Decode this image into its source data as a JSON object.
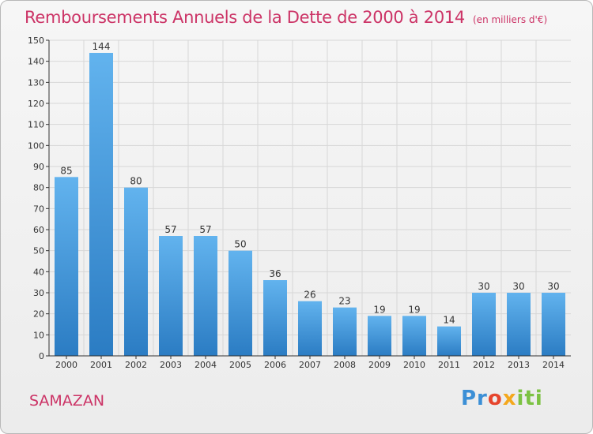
{
  "header": {
    "title": "Remboursements Annuels de la Dette de 2000 à 2014",
    "unit": "(en milliers d'€)"
  },
  "footer": {
    "town": "SAMAZAN",
    "logo_parts": [
      "Pr",
      "o",
      "x",
      "iti"
    ]
  },
  "colors": {
    "title": "#cc3366",
    "bar_top": "#62b3ee",
    "bar_bottom": "#2b7cc3",
    "axis": "#333333",
    "grid": "#d7d7d7"
  },
  "chart_data": {
    "type": "bar",
    "categories": [
      "2000",
      "2001",
      "2002",
      "2003",
      "2004",
      "2005",
      "2006",
      "2007",
      "2008",
      "2009",
      "2010",
      "2011",
      "2012",
      "2013",
      "2014"
    ],
    "values": [
      85,
      144,
      80,
      57,
      57,
      50,
      36,
      26,
      23,
      19,
      19,
      14,
      30,
      30,
      30
    ],
    "title": "Remboursements Annuels de la Dette de 2000 à 2014",
    "xlabel": "",
    "ylabel": "",
    "ylim": [
      0,
      150
    ],
    "yticks": [
      0,
      10,
      20,
      30,
      40,
      50,
      60,
      70,
      80,
      90,
      100,
      110,
      120,
      130,
      140,
      150
    ],
    "grid": true,
    "data_labels": true
  }
}
